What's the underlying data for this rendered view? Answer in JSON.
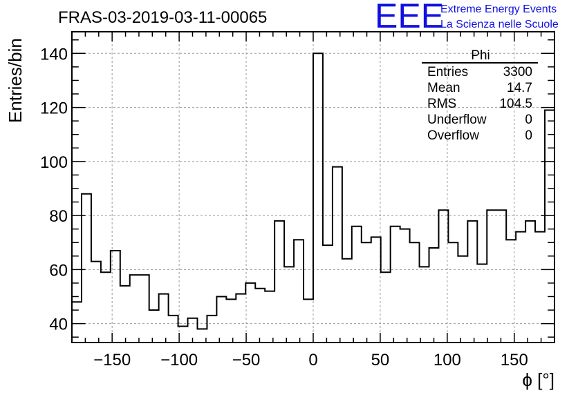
{
  "chart_data": {
    "type": "histogram",
    "title": "FRAS-03-2019-03-11-00065",
    "xlabel": "ϕ [°]",
    "ylabel": "Entries/bin",
    "xlim": [
      -180,
      180
    ],
    "ylim": [
      33,
      148
    ],
    "bin_width": 7.2,
    "bin_edges_start": -180,
    "values": [
      48,
      88,
      63,
      59,
      67,
      54,
      58,
      58,
      45,
      51,
      43,
      39,
      42,
      38,
      43,
      50,
      49,
      51,
      55,
      53,
      52,
      78,
      61,
      71,
      49,
      140,
      69,
      98,
      64,
      76,
      70,
      72,
      59,
      76,
      75,
      70,
      61,
      68,
      82,
      70,
      65,
      78,
      62,
      82,
      82,
      71,
      74,
      78,
      74,
      119
    ],
    "x_ticks": [
      -150,
      -100,
      -50,
      0,
      50,
      100,
      150
    ],
    "x_tick_labels": [
      "−150",
      "−100",
      "−50",
      "0",
      "50",
      "100",
      "150"
    ],
    "y_ticks": [
      40,
      60,
      80,
      100,
      120,
      140
    ],
    "y_tick_labels": [
      "40",
      "60",
      "80",
      "100",
      "120",
      "140"
    ],
    "grid": true,
    "legend": "none"
  },
  "stats": {
    "name": "Phi",
    "rows": [
      {
        "label": "Entries",
        "value": "3300"
      },
      {
        "label": "Mean",
        "value": "14.7"
      },
      {
        "label": "RMS",
        "value": "104.5"
      },
      {
        "label": "Underflow",
        "value": "0"
      },
      {
        "label": "Overflow",
        "value": "0"
      }
    ]
  },
  "logo": {
    "mark": "EEE",
    "line1": "Extreme Energy Events",
    "line2": "La Scienza nelle Scuole",
    "color": "#1010e0"
  }
}
